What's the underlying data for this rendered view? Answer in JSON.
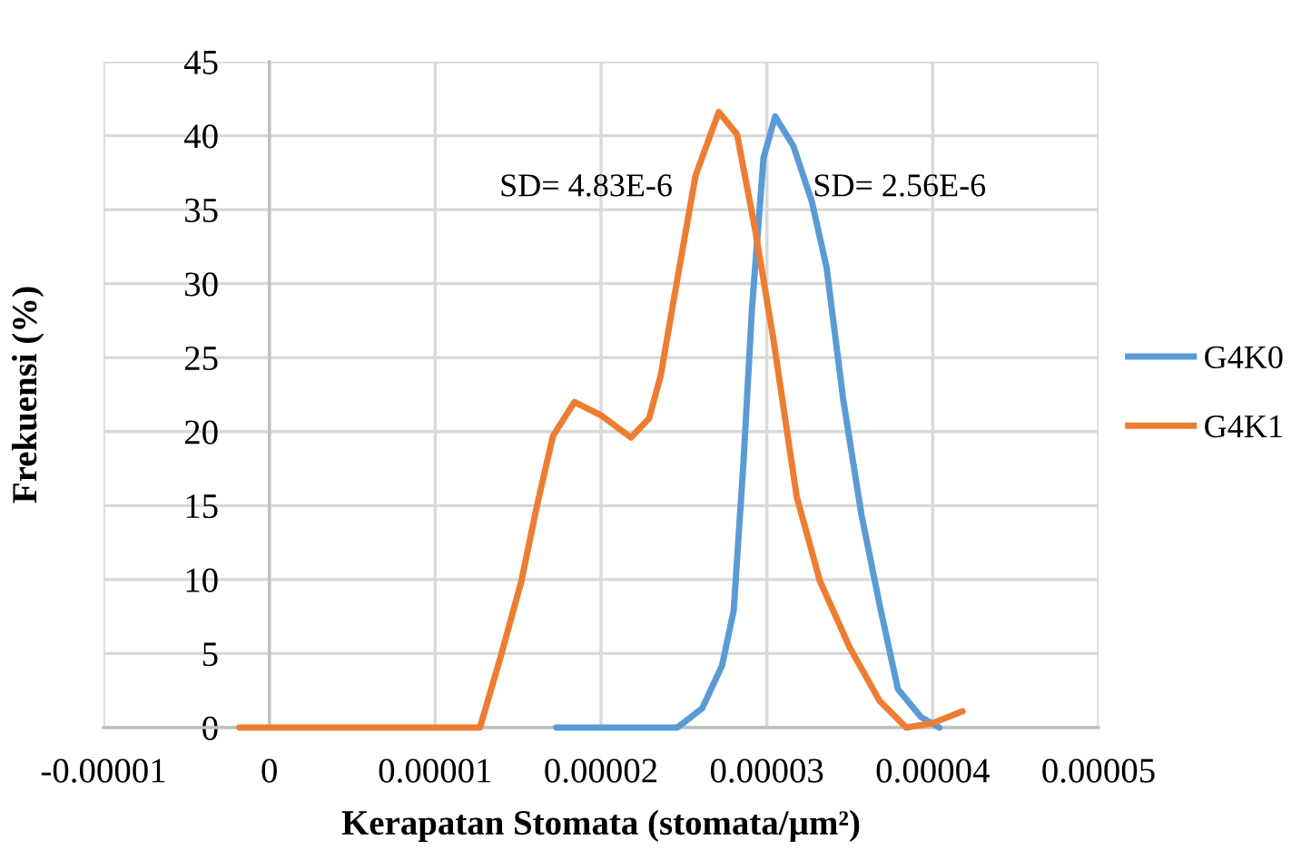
{
  "chart_data": {
    "type": "line",
    "xlabel": "Kerapatan Stomata (stomata/µm²)",
    "ylabel": "Frekuensi (%)",
    "xlim": [
      -1e-05,
      5e-05
    ],
    "xticks": [
      {
        "value": -1e-05,
        "label": "-0.00001"
      },
      0,
      {
        "value": 1e-05,
        "label": "0.00001"
      },
      {
        "value": 2e-05,
        "label": "0.00002"
      },
      {
        "value": 3e-05,
        "label": "0.00003"
      },
      {
        "value": 4e-05,
        "label": "0.00004"
      },
      {
        "value": 5e-05,
        "label": "0.00005"
      }
    ],
    "ylim": [
      0,
      45
    ],
    "yticks": [
      0,
      5,
      10,
      15,
      20,
      25,
      30,
      35,
      40,
      45
    ],
    "grid": true,
    "legend": "right",
    "marker": "none",
    "line_style": "solid",
    "annotations": [
      "SD= 4.83E-6",
      "SD= 2.56E-6"
    ],
    "series": [
      {
        "name": "G4K0",
        "color": "#5b9bd5",
        "x": [
          1.73e-05,
          2.25e-05,
          2.46e-05,
          2.61e-05,
          2.73e-05,
          2.8e-05,
          2.86e-05,
          2.91e-05,
          2.98e-05,
          3.05e-05,
          3.16e-05,
          3.27e-05,
          3.36e-05,
          3.46e-05,
          3.57e-05,
          3.68e-05,
          3.79e-05,
          3.93e-05,
          4.04e-05
        ],
        "values": [
          0,
          0,
          0,
          1.3,
          4.2,
          7.9,
          18.1,
          28.3,
          38.5,
          41.3,
          39.3,
          35.6,
          31.1,
          22.2,
          14.4,
          8.3,
          2.6,
          0.7,
          0
        ]
      },
      {
        "name": "G4K1",
        "color": "#ed7d31",
        "x": [
          -1.8e-06,
          8.9e-06,
          1.27e-05,
          1.39e-05,
          1.52e-05,
          1.61e-05,
          1.71e-05,
          1.84e-05,
          2e-05,
          2.18e-05,
          2.29e-05,
          2.36e-05,
          2.46e-05,
          2.57e-05,
          2.71e-05,
          2.82e-05,
          2.93e-05,
          3.04e-05,
          3.18e-05,
          3.32e-05,
          3.5e-05,
          3.68e-05,
          3.84e-05,
          4e-05,
          4.18e-05
        ],
        "values": [
          0,
          0,
          0,
          4.6,
          9.9,
          14.8,
          19.7,
          22.0,
          21.1,
          19.6,
          20.9,
          23.8,
          30.3,
          37.3,
          41.6,
          40.1,
          33.6,
          26.2,
          15.6,
          9.9,
          5.4,
          1.8,
          0,
          0.3,
          1.1
        ]
      }
    ]
  }
}
